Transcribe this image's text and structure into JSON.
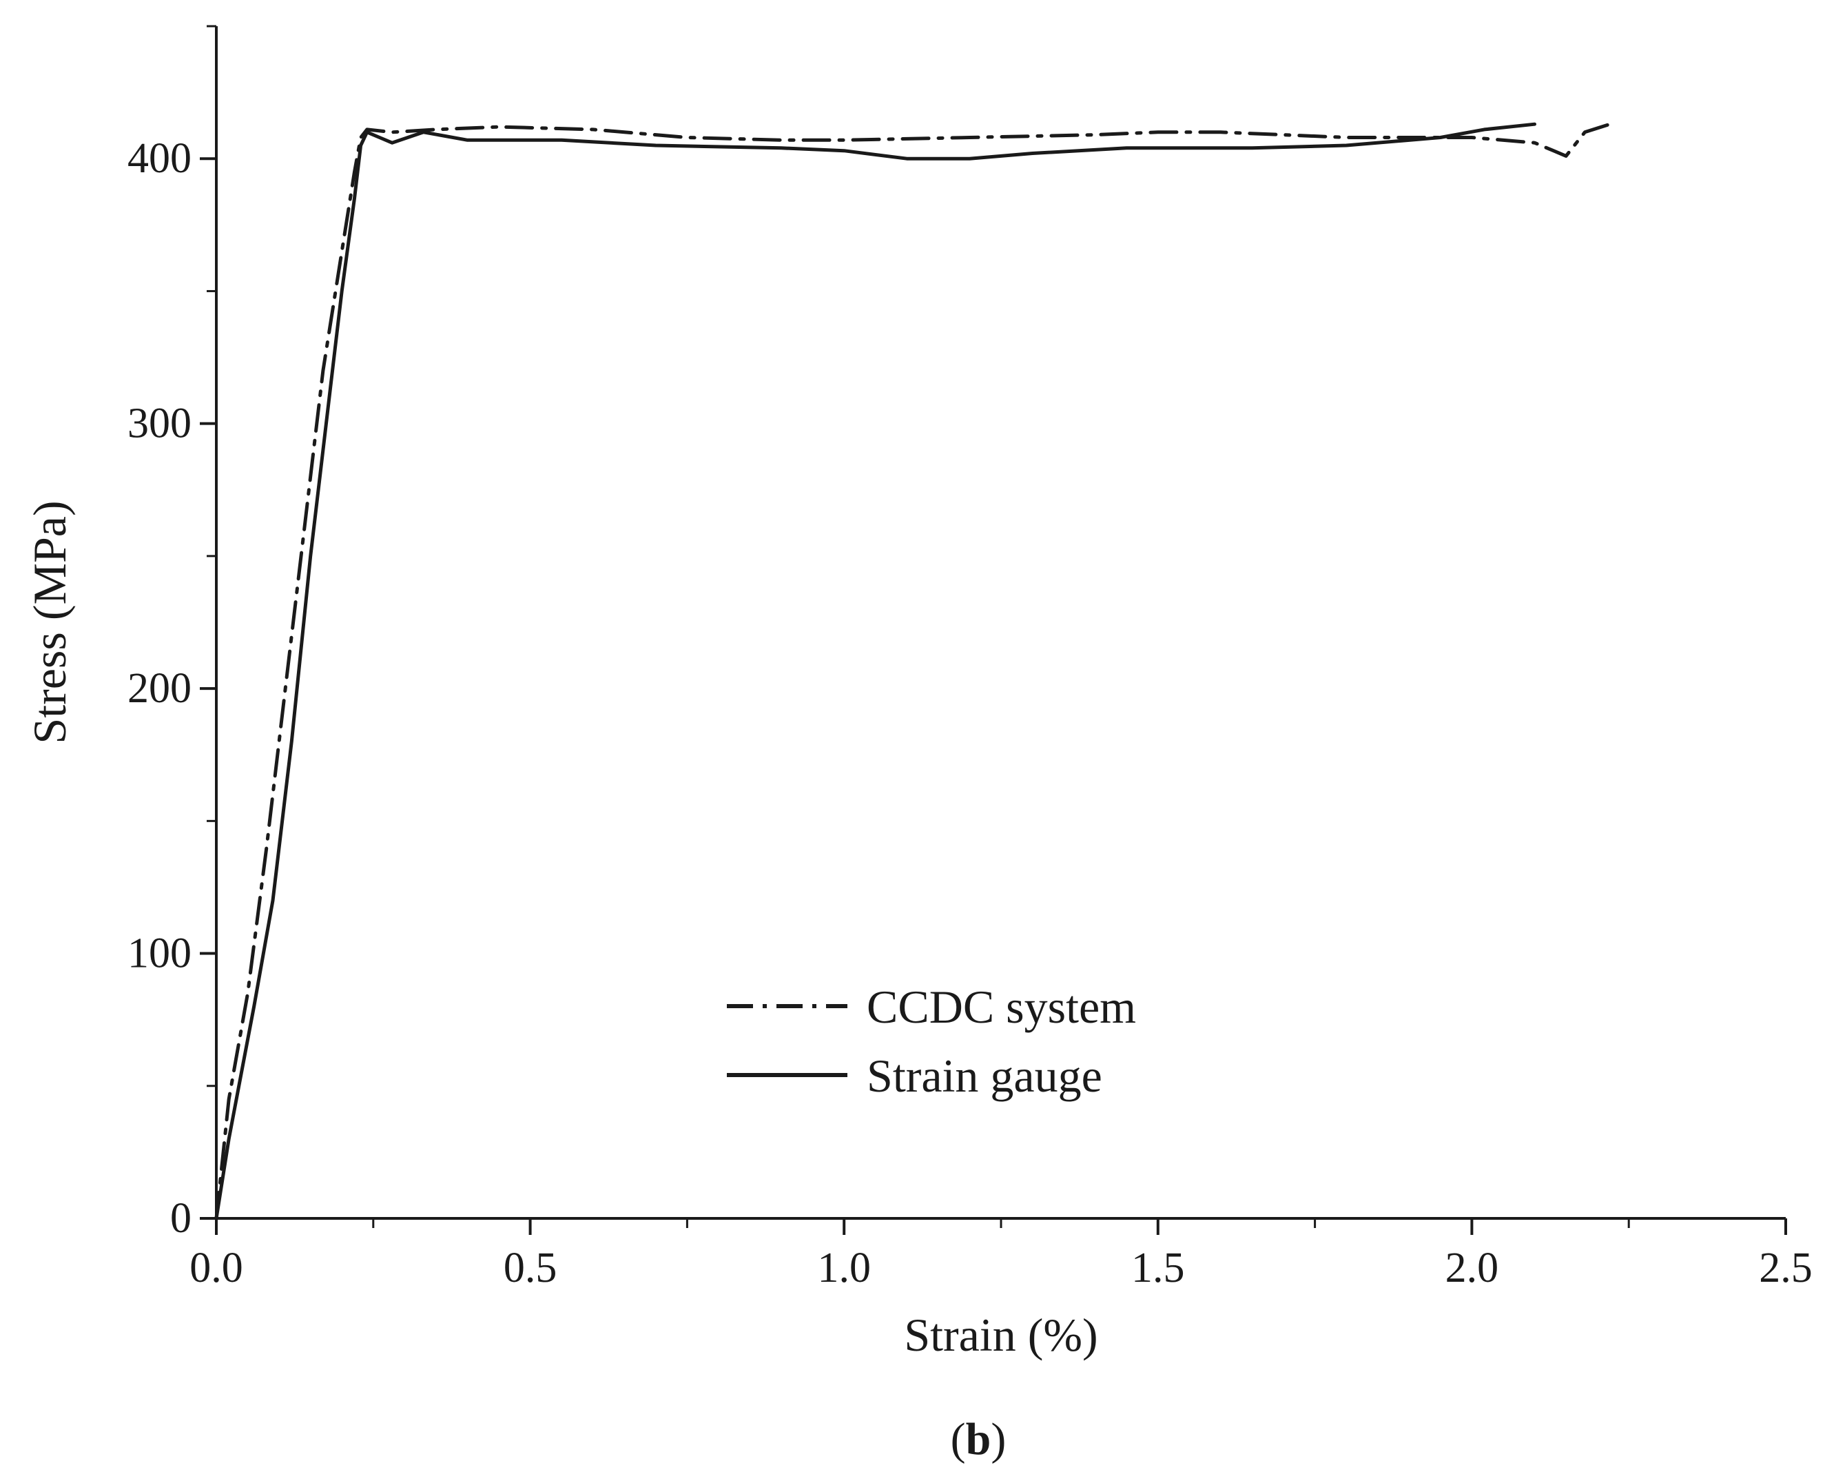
{
  "chart_data": {
    "type": "line",
    "title": "",
    "xlabel": "Strain (%)",
    "ylabel": "Stress (MPa)",
    "xlim": [
      0,
      2.5
    ],
    "ylim": [
      0,
      450
    ],
    "x_ticks": [
      0.0,
      0.5,
      1.0,
      1.5,
      2.0,
      2.5
    ],
    "x_tick_labels": [
      "0.0",
      "0.5",
      "1.0",
      "1.5",
      "2.0",
      "2.5"
    ],
    "y_ticks": [
      0,
      100,
      200,
      300,
      400
    ],
    "y_tick_labels": [
      "0",
      "100",
      "200",
      "300",
      "400"
    ],
    "x_minor_ticks": [
      0.25,
      0.75,
      1.25,
      1.75,
      2.25
    ],
    "y_minor_ticks": [
      50,
      150,
      250,
      350,
      450
    ],
    "grid": false,
    "legend_position": "bottom-center",
    "series": [
      {
        "name": "CCDC system",
        "style": "dash-dot",
        "color": "#1a1a1a",
        "x": [
          0.0,
          0.02,
          0.05,
          0.08,
          0.11,
          0.14,
          0.17,
          0.2,
          0.22,
          0.23,
          0.24,
          0.28,
          0.35,
          0.45,
          0.6,
          0.75,
          0.9,
          1.0,
          1.2,
          1.4,
          1.5,
          1.6,
          1.8,
          2.0,
          2.1,
          2.13,
          2.15,
          2.18,
          2.22
        ],
        "y": [
          0,
          45,
          85,
          140,
          200,
          260,
          320,
          365,
          395,
          408,
          411,
          410,
          411,
          412,
          411,
          408,
          407,
          407,
          408,
          409,
          410,
          410,
          408,
          408,
          406,
          403,
          401,
          410,
          413
        ]
      },
      {
        "name": "Strain gauge",
        "style": "solid",
        "color": "#1a1a1a",
        "x": [
          0.0,
          0.02,
          0.04,
          0.06,
          0.09,
          0.12,
          0.15,
          0.18,
          0.2,
          0.22,
          0.23,
          0.24,
          0.26,
          0.28,
          0.33,
          0.4,
          0.55,
          0.7,
          0.9,
          1.0,
          1.1,
          1.2,
          1.3,
          1.45,
          1.65,
          1.8,
          1.95,
          2.02,
          2.1
        ],
        "y": [
          0,
          30,
          55,
          80,
          120,
          180,
          250,
          310,
          350,
          385,
          405,
          410,
          408,
          406,
          410,
          407,
          407,
          405,
          404,
          403,
          400,
          400,
          402,
          404,
          404,
          405,
          408,
          411,
          413
        ]
      }
    ],
    "caption": "(b)"
  }
}
